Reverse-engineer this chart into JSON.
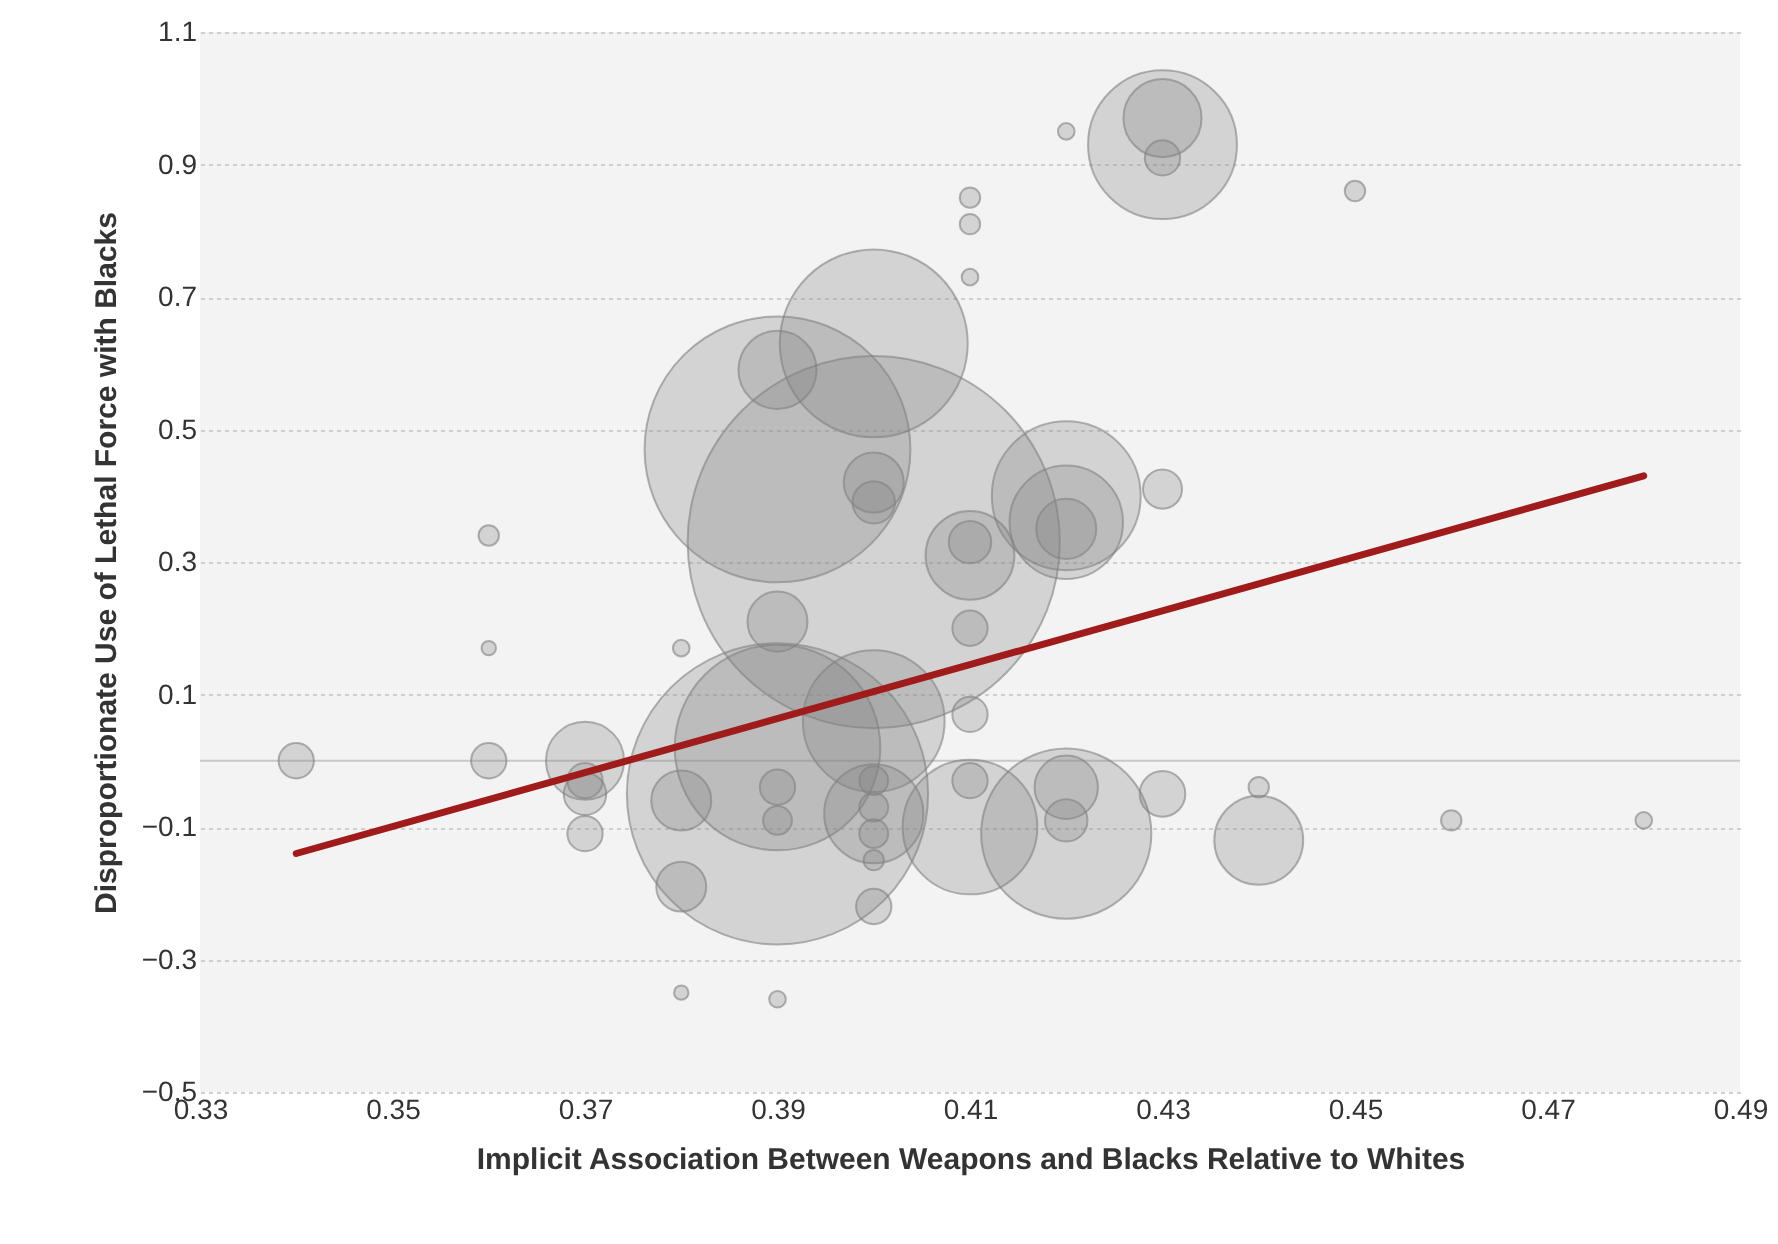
{
  "chart_data": {
    "type": "bubble",
    "xlabel": "Implicit Association Between Weapons and Blacks Relative to Whites",
    "ylabel": "Disproportionate Use of Lethal Force with Blacks",
    "xlim": [
      0.33,
      0.49
    ],
    "xticks": [
      0.33,
      0.35,
      0.37,
      0.39,
      0.41,
      0.43,
      0.45,
      0.47,
      0.49
    ],
    "ylim": [
      -0.5,
      1.1
    ],
    "yticks": [
      -0.5,
      -0.3,
      -0.1,
      0.1,
      0.3,
      0.5,
      0.7,
      0.9,
      1.1
    ],
    "grid": "y",
    "ref_lines": [
      {
        "axis": "y",
        "value": 0,
        "color": "#c8c8c8"
      }
    ],
    "series": [
      {
        "type": "bubble",
        "color": "#808080",
        "x": [
          0.34,
          0.36,
          0.36,
          0.36,
          0.37,
          0.37,
          0.37,
          0.37,
          0.38,
          0.38,
          0.38,
          0.38,
          0.39,
          0.39,
          0.4,
          0.4,
          0.39,
          0.4,
          0.4,
          0.41,
          0.41,
          0.41,
          0.42,
          0.43,
          0.43,
          0.43,
          0.45,
          0.42,
          0.42,
          0.42,
          0.41,
          0.41,
          0.41,
          0.43,
          0.39,
          0.4,
          0.39,
          0.4,
          0.4,
          0.4,
          0.4,
          0.39,
          0.39,
          0.4,
          0.4,
          0.41,
          0.41,
          0.41,
          0.42,
          0.42,
          0.42,
          0.43,
          0.44,
          0.44,
          0.46,
          0.48,
          0.39
        ],
        "values": [
          0.0,
          0.34,
          0.17,
          0.0,
          0.0,
          -0.05,
          -0.11,
          -0.03,
          -0.06,
          -0.19,
          -0.35,
          0.17,
          -0.05,
          0.47,
          0.63,
          0.33,
          0.59,
          0.42,
          0.39,
          0.85,
          0.81,
          0.73,
          0.95,
          0.93,
          0.97,
          0.91,
          0.86,
          0.4,
          0.36,
          0.35,
          0.31,
          0.33,
          0.2,
          0.41,
          0.21,
          0.06,
          0.02,
          -0.03,
          -0.07,
          -0.11,
          -0.15,
          -0.04,
          -0.09,
          -0.08,
          -0.22,
          0.07,
          -0.03,
          -0.1,
          -0.04,
          -0.09,
          -0.11,
          -0.05,
          -0.12,
          -0.04,
          -0.09,
          -0.09,
          -0.36
        ],
        "sizes": [
          0.009,
          0.003,
          0.0015,
          0.009,
          0.044,
          0.013,
          0.009,
          0.009,
          0.026,
          0.018,
          0.0015,
          0.002,
          0.655,
          0.51,
          0.255,
          1,
          0.044,
          0.026,
          0.013,
          0.003,
          0.003,
          0.002,
          0.002,
          0.16,
          0.044,
          0.009,
          0.003,
          0.16,
          0.093,
          0.026,
          0.057,
          0.013,
          0.009,
          0.011,
          0.026,
          0.145,
          0.305,
          0.006,
          0.006,
          0.006,
          0.003,
          0.009,
          0.006,
          0.071,
          0.009,
          0.009,
          0.009,
          0.131,
          0.029,
          0.013,
          0.209,
          0.015,
          0.057,
          0.003,
          0.003,
          0.002,
          0.002
        ]
      },
      {
        "type": "line",
        "color": "#a01c1c",
        "x": [
          0.34,
          0.48
        ],
        "values": [
          -0.14,
          0.43
        ]
      }
    ]
  }
}
